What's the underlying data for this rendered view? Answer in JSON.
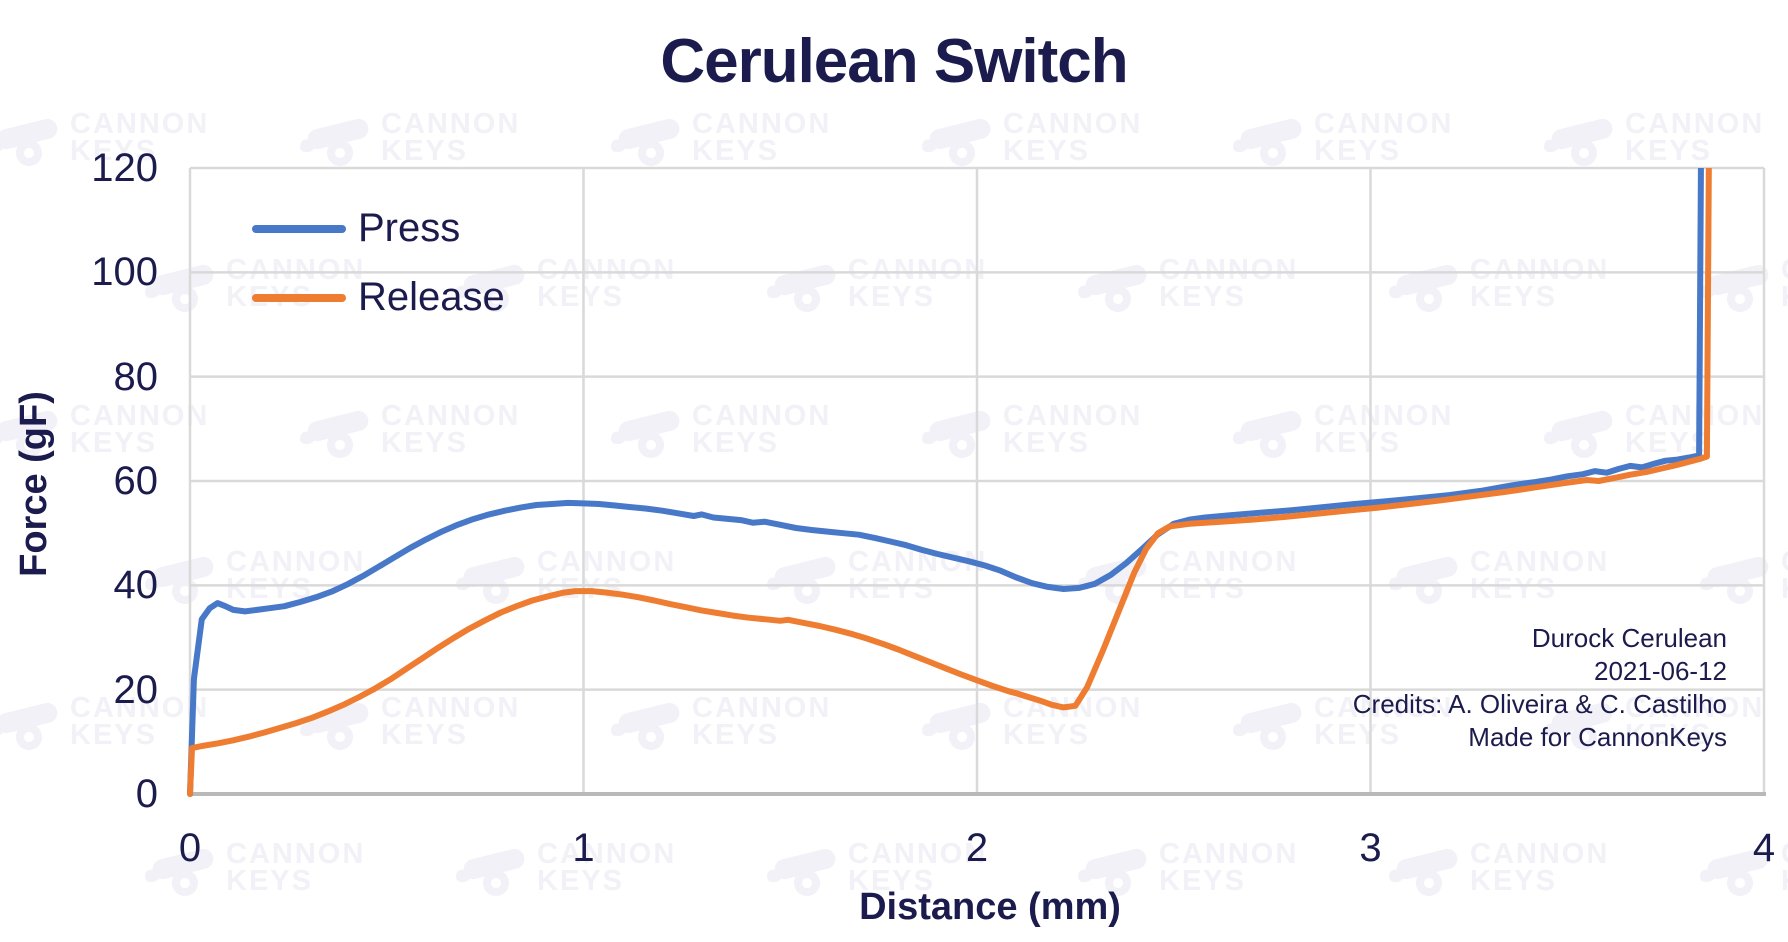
{
  "chart_data": {
    "type": "line",
    "title": "Cerulean Switch",
    "xlabel": "Distance (mm)",
    "ylabel": "Force (gF)",
    "xlim": [
      0,
      4
    ],
    "ylim": [
      0,
      120
    ],
    "x_ticks": [
      0,
      1,
      2,
      3,
      4
    ],
    "y_ticks": [
      0,
      20,
      40,
      60,
      80,
      100,
      120
    ],
    "grid": true,
    "legend_position": "upper-left-inside",
    "series": [
      {
        "name": "Press",
        "color": "#4878C8",
        "points": [
          [
            0,
            0
          ],
          [
            0.01,
            22
          ],
          [
            0.03,
            33.5
          ],
          [
            0.05,
            35.6
          ],
          [
            0.07,
            36.6
          ],
          [
            0.09,
            36.0
          ],
          [
            0.11,
            35.3
          ],
          [
            0.14,
            35.0
          ],
          [
            0.17,
            35.3
          ],
          [
            0.2,
            35.6
          ],
          [
            0.24,
            36.0
          ],
          [
            0.28,
            36.8
          ],
          [
            0.32,
            37.7
          ],
          [
            0.36,
            38.8
          ],
          [
            0.4,
            40.2
          ],
          [
            0.44,
            41.8
          ],
          [
            0.48,
            43.6
          ],
          [
            0.52,
            45.4
          ],
          [
            0.56,
            47.2
          ],
          [
            0.6,
            48.8
          ],
          [
            0.64,
            50.3
          ],
          [
            0.68,
            51.6
          ],
          [
            0.72,
            52.7
          ],
          [
            0.76,
            53.6
          ],
          [
            0.8,
            54.3
          ],
          [
            0.84,
            54.9
          ],
          [
            0.88,
            55.4
          ],
          [
            0.92,
            55.6
          ],
          [
            0.96,
            55.8
          ],
          [
            1.0,
            55.7
          ],
          [
            1.04,
            55.6
          ],
          [
            1.08,
            55.3
          ],
          [
            1.12,
            55.0
          ],
          [
            1.16,
            54.7
          ],
          [
            1.2,
            54.3
          ],
          [
            1.24,
            53.8
          ],
          [
            1.28,
            53.3
          ],
          [
            1.3,
            53.6
          ],
          [
            1.33,
            53.0
          ],
          [
            1.36,
            52.8
          ],
          [
            1.4,
            52.5
          ],
          [
            1.43,
            52.0
          ],
          [
            1.46,
            52.2
          ],
          [
            1.5,
            51.6
          ],
          [
            1.54,
            51.0
          ],
          [
            1.58,
            50.6
          ],
          [
            1.62,
            50.3
          ],
          [
            1.66,
            50.0
          ],
          [
            1.7,
            49.7
          ],
          [
            1.74,
            49.1
          ],
          [
            1.78,
            48.4
          ],
          [
            1.82,
            47.7
          ],
          [
            1.86,
            46.8
          ],
          [
            1.9,
            46.0
          ],
          [
            1.94,
            45.3
          ],
          [
            1.98,
            44.6
          ],
          [
            2.02,
            43.8
          ],
          [
            2.06,
            42.8
          ],
          [
            2.1,
            41.5
          ],
          [
            2.14,
            40.4
          ],
          [
            2.18,
            39.7
          ],
          [
            2.22,
            39.3
          ],
          [
            2.26,
            39.5
          ],
          [
            2.3,
            40.3
          ],
          [
            2.34,
            42.0
          ],
          [
            2.38,
            44.3
          ],
          [
            2.42,
            47.0
          ],
          [
            2.46,
            49.8
          ],
          [
            2.5,
            51.8
          ],
          [
            2.54,
            52.6
          ],
          [
            2.58,
            53.0
          ],
          [
            2.64,
            53.4
          ],
          [
            2.72,
            53.9
          ],
          [
            2.8,
            54.4
          ],
          [
            2.88,
            55.0
          ],
          [
            2.96,
            55.6
          ],
          [
            3.04,
            56.1
          ],
          [
            3.12,
            56.7
          ],
          [
            3.2,
            57.3
          ],
          [
            3.28,
            58.1
          ],
          [
            3.34,
            58.9
          ],
          [
            3.38,
            59.4
          ],
          [
            3.42,
            59.8
          ],
          [
            3.46,
            60.3
          ],
          [
            3.5,
            60.9
          ],
          [
            3.54,
            61.3
          ],
          [
            3.57,
            61.9
          ],
          [
            3.6,
            61.6
          ],
          [
            3.63,
            62.3
          ],
          [
            3.66,
            62.9
          ],
          [
            3.69,
            62.6
          ],
          [
            3.72,
            63.3
          ],
          [
            3.75,
            63.9
          ],
          [
            3.78,
            64.1
          ],
          [
            3.81,
            64.5
          ],
          [
            3.835,
            64.9
          ],
          [
            3.84,
            122
          ]
        ]
      },
      {
        "name": "Release",
        "color": "#EE7D31",
        "points": [
          [
            0,
            0
          ],
          [
            0.005,
            8.8
          ],
          [
            0.03,
            9.2
          ],
          [
            0.07,
            9.7
          ],
          [
            0.11,
            10.3
          ],
          [
            0.15,
            11.0
          ],
          [
            0.19,
            11.8
          ],
          [
            0.23,
            12.7
          ],
          [
            0.27,
            13.6
          ],
          [
            0.31,
            14.6
          ],
          [
            0.35,
            15.8
          ],
          [
            0.39,
            17.1
          ],
          [
            0.43,
            18.6
          ],
          [
            0.47,
            20.2
          ],
          [
            0.51,
            22.0
          ],
          [
            0.55,
            24.0
          ],
          [
            0.59,
            26.0
          ],
          [
            0.63,
            28.0
          ],
          [
            0.67,
            29.9
          ],
          [
            0.71,
            31.7
          ],
          [
            0.75,
            33.3
          ],
          [
            0.79,
            34.8
          ],
          [
            0.83,
            36.0
          ],
          [
            0.87,
            37.1
          ],
          [
            0.91,
            37.9
          ],
          [
            0.95,
            38.6
          ],
          [
            0.98,
            38.9
          ],
          [
            1.02,
            38.9
          ],
          [
            1.06,
            38.6
          ],
          [
            1.1,
            38.2
          ],
          [
            1.14,
            37.7
          ],
          [
            1.18,
            37.1
          ],
          [
            1.22,
            36.4
          ],
          [
            1.26,
            35.8
          ],
          [
            1.3,
            35.2
          ],
          [
            1.34,
            34.7
          ],
          [
            1.38,
            34.2
          ],
          [
            1.42,
            33.8
          ],
          [
            1.46,
            33.5
          ],
          [
            1.5,
            33.2
          ],
          [
            1.52,
            33.4
          ],
          [
            1.56,
            32.8
          ],
          [
            1.6,
            32.2
          ],
          [
            1.64,
            31.5
          ],
          [
            1.68,
            30.7
          ],
          [
            1.72,
            29.8
          ],
          [
            1.76,
            28.8
          ],
          [
            1.8,
            27.7
          ],
          [
            1.84,
            26.5
          ],
          [
            1.88,
            25.3
          ],
          [
            1.92,
            24.1
          ],
          [
            1.96,
            22.9
          ],
          [
            2.0,
            21.8
          ],
          [
            2.04,
            20.7
          ],
          [
            2.08,
            19.7
          ],
          [
            2.1,
            19.3
          ],
          [
            2.13,
            18.6
          ],
          [
            2.16,
            17.9
          ],
          [
            2.19,
            17.1
          ],
          [
            2.22,
            16.6
          ],
          [
            2.25,
            16.9
          ],
          [
            2.28,
            20.5
          ],
          [
            2.32,
            27.5
          ],
          [
            2.36,
            35.0
          ],
          [
            2.4,
            42.5
          ],
          [
            2.43,
            47.0
          ],
          [
            2.46,
            50.0
          ],
          [
            2.49,
            51.3
          ],
          [
            2.54,
            51.8
          ],
          [
            2.62,
            52.2
          ],
          [
            2.7,
            52.6
          ],
          [
            2.78,
            53.1
          ],
          [
            2.86,
            53.7
          ],
          [
            2.94,
            54.3
          ],
          [
            3.02,
            54.9
          ],
          [
            3.1,
            55.6
          ],
          [
            3.18,
            56.3
          ],
          [
            3.26,
            57.1
          ],
          [
            3.34,
            57.9
          ],
          [
            3.42,
            58.8
          ],
          [
            3.5,
            59.7
          ],
          [
            3.55,
            60.2
          ],
          [
            3.58,
            60.0
          ],
          [
            3.62,
            60.6
          ],
          [
            3.66,
            61.2
          ],
          [
            3.7,
            61.7
          ],
          [
            3.74,
            62.4
          ],
          [
            3.78,
            63.1
          ],
          [
            3.81,
            63.7
          ],
          [
            3.84,
            64.3
          ],
          [
            3.855,
            64.7
          ],
          [
            3.86,
            122
          ]
        ]
      }
    ]
  },
  "annotations": {
    "lines": [
      "Durock Cerulean",
      "2021-06-12",
      "Credits: A. Oliveira & C. Castilho",
      "Made for CannonKeys"
    ]
  },
  "watermark": {
    "text_lines": [
      "CANNON",
      "KEYS"
    ],
    "color": "#f1f1f7"
  },
  "colors": {
    "text_navy": "#1b1b4d",
    "gridline": "#d9d9d9",
    "axis_line": "#b9b9b9",
    "press_blue": "#4878C8",
    "release_orange": "#EE7D31",
    "background": "#ffffff"
  }
}
